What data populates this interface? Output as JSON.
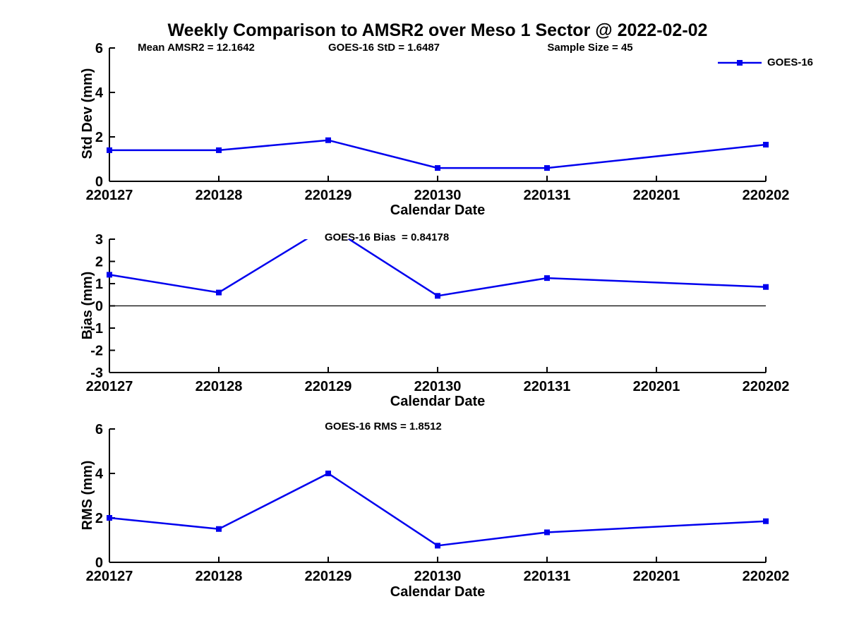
{
  "title": "Weekly Comparison to AMSR2 over Meso 1 Sector @ 2022-02-02",
  "legend": {
    "label": "GOES-16"
  },
  "colors": {
    "line": "#0000EE",
    "axis": "#000000",
    "text": "#000000",
    "background": "#FFFFFF"
  },
  "stats": {
    "mean_amsr2": 12.1642,
    "goes16_std": 1.6487,
    "sample_size": 45,
    "goes16_bias": 0.84178,
    "goes16_rms": 1.8512
  },
  "chart_data": [
    {
      "name": "std-dev",
      "type": "line",
      "ylabel": "Std Dev (mm)",
      "xlabel": "Calendar Date",
      "ylim": [
        0,
        6
      ],
      "yticks": [
        0,
        2,
        4,
        6
      ],
      "grid": false,
      "legend_position": "top-right-outside",
      "x_categories": [
        "220127",
        "220128",
        "220129",
        "220130",
        "220131",
        "220201",
        "220202"
      ],
      "annotations": [
        {
          "text": "Mean AMSR2 = 12.1642"
        },
        {
          "text": "GOES-16 StD = 1.6487"
        },
        {
          "text": "Sample Size = 45"
        }
      ],
      "series": [
        {
          "name": "GOES-16",
          "x": [
            "220127",
            "220128",
            "220129",
            "220130",
            "220131",
            "220202"
          ],
          "values": [
            1.4,
            1.4,
            1.85,
            0.6,
            0.6,
            1.65
          ]
        }
      ]
    },
    {
      "name": "bias",
      "type": "line",
      "ylabel": "Bias (mm)",
      "xlabel": "Calendar Date",
      "ylim": [
        -3,
        3
      ],
      "yticks": [
        -3,
        -2,
        -1,
        0,
        1,
        2,
        3
      ],
      "zero_line": true,
      "grid": false,
      "x_categories": [
        "220127",
        "220128",
        "220129",
        "220130",
        "220131",
        "220201",
        "220202"
      ],
      "annotations": [
        {
          "text": "GOES-16 Bias  = 0.84178"
        }
      ],
      "series": [
        {
          "name": "GOES-16",
          "x": [
            "220127",
            "220128",
            "220129",
            "220130",
            "220131",
            "220202"
          ],
          "values": [
            1.4,
            0.6,
            3.6,
            0.45,
            1.25,
            0.85
          ]
        }
      ]
    },
    {
      "name": "rms",
      "type": "line",
      "ylabel": "RMS (mm)",
      "xlabel": "Calendar Date",
      "ylim": [
        0,
        6
      ],
      "yticks": [
        0,
        2,
        4,
        6
      ],
      "grid": false,
      "x_categories": [
        "220127",
        "220128",
        "220129",
        "220130",
        "220131",
        "220201",
        "220202"
      ],
      "annotations": [
        {
          "text": "GOES-16 RMS = 1.8512"
        }
      ],
      "series": [
        {
          "name": "GOES-16",
          "x": [
            "220127",
            "220128",
            "220129",
            "220130",
            "220131",
            "220202"
          ],
          "values": [
            2.0,
            1.5,
            4.0,
            0.75,
            1.35,
            1.85
          ]
        }
      ]
    }
  ]
}
